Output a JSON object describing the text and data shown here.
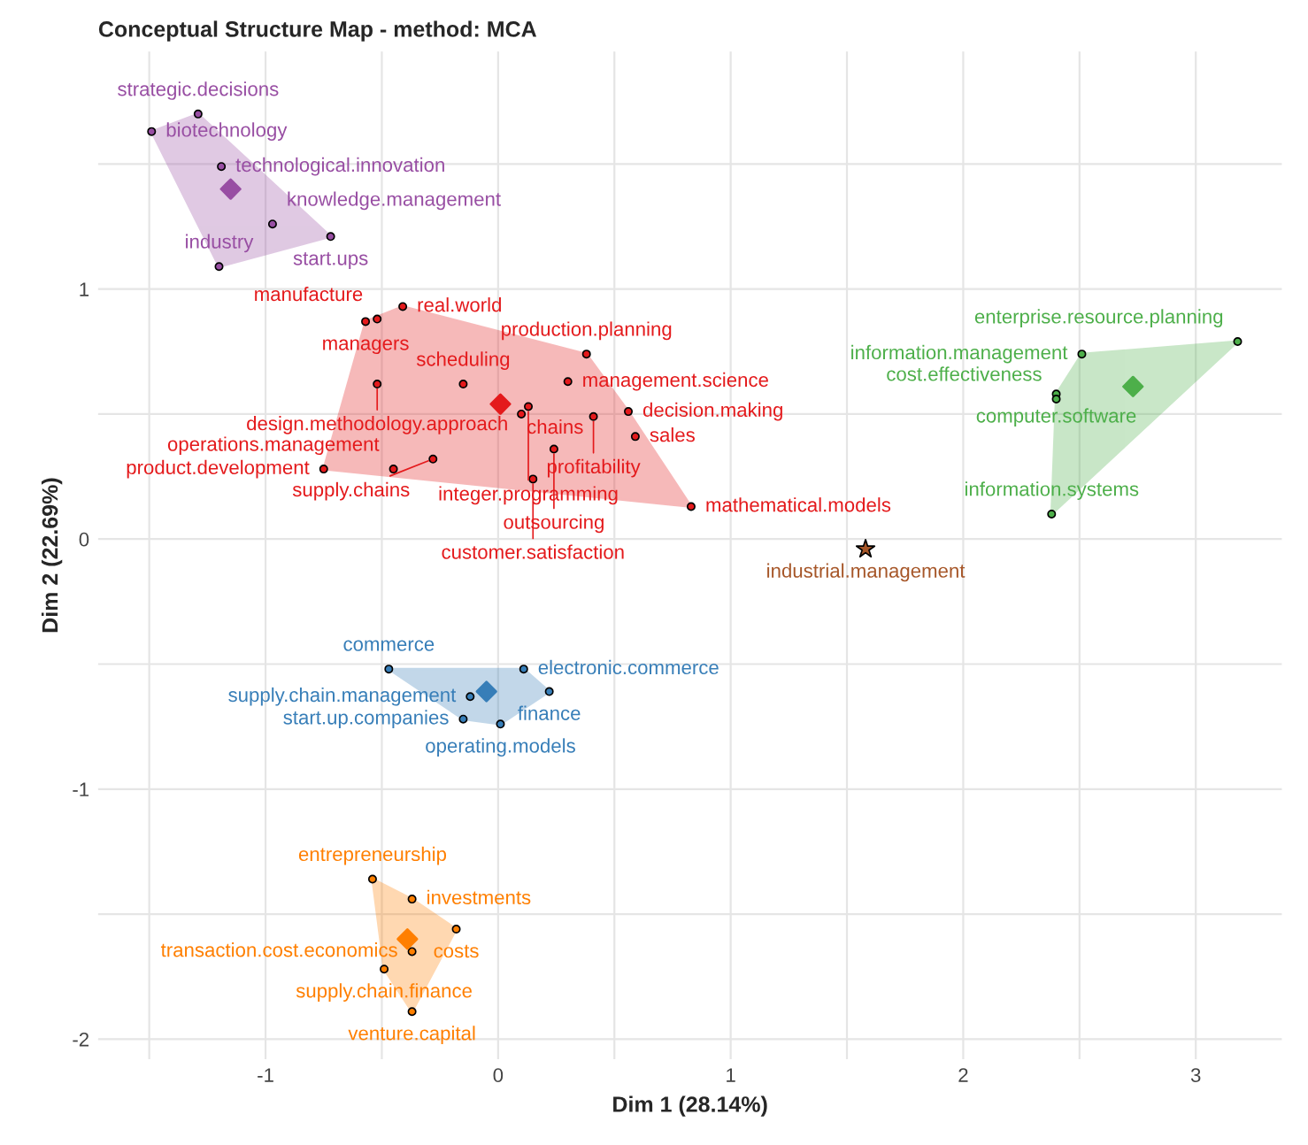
{
  "chart_data": {
    "type": "scatter",
    "title": "Conceptual Structure Map - method: MCA",
    "xlabel": "Dim 1 (28.14%)",
    "ylabel": "Dim 2 (22.69%)",
    "xlim": [
      -1.72,
      3.37
    ],
    "ylim": [
      -2.08,
      1.95
    ],
    "xticks": [
      {
        "value": -1.5,
        "label": null
      },
      -1,
      {
        "value": -0.5,
        "label": null
      },
      0,
      {
        "value": 0.5,
        "label": null
      },
      1,
      {
        "value": 1.5,
        "label": null
      },
      2,
      {
        "value": 2.5,
        "label": null
      },
      3
    ],
    "yticks": [
      {
        "value": -2,
        "label": "-2"
      },
      {
        "value": -1.5,
        "label": null
      },
      {
        "value": -1,
        "label": "-1"
      },
      {
        "value": -0.5,
        "label": null
      },
      0,
      {
        "value": 0.5,
        "label": null
      },
      1,
      {
        "value": 1.5,
        "label": null
      }
    ],
    "grid": true,
    "legend": false,
    "marker": "circle",
    "series": [
      {
        "type": "scatter",
        "color": "#984ea3",
        "x": [
          -1.29,
          -1.49,
          -1.19,
          -0.97,
          -0.72,
          -1.2
        ],
        "values": [
          1.7,
          1.63,
          1.49,
          1.26,
          1.21,
          1.09
        ]
      },
      {
        "type": "scatter",
        "color": "#e41a1c",
        "x": [
          -0.57,
          -0.52,
          -0.41,
          0.38,
          0.3,
          -0.52,
          -0.15,
          0.13,
          0.1,
          0.56,
          0.41,
          0.59,
          0.24,
          -0.28,
          -0.45,
          -0.75,
          0.15,
          0.83
        ],
        "values": [
          0.87,
          0.88,
          0.93,
          0.74,
          0.63,
          0.62,
          0.62,
          0.53,
          0.5,
          0.51,
          0.49,
          0.41,
          0.36,
          0.32,
          0.28,
          0.28,
          0.24,
          0.13
        ]
      },
      {
        "type": "scatter",
        "color": "#4daf4a",
        "x": [
          3.18,
          2.51,
          2.4,
          2.4,
          2.38
        ],
        "values": [
          0.79,
          0.74,
          0.58,
          0.56,
          0.1
        ]
      },
      {
        "type": "scatter",
        "color": "#a65628",
        "marker": "star",
        "x": [
          1.58
        ],
        "values": [
          -0.04
        ]
      },
      {
        "type": "scatter",
        "color": "#377eb8",
        "x": [
          -0.47,
          0.11,
          0.22,
          0.01,
          -0.15,
          -0.12
        ],
        "values": [
          -0.52,
          -0.52,
          -0.61,
          -0.74,
          -0.72,
          -0.63
        ]
      },
      {
        "type": "scatter",
        "color": "#ff7f00",
        "x": [
          -0.54,
          -0.37,
          -0.18,
          -0.37,
          -0.49,
          -0.37
        ],
        "values": [
          -1.36,
          -1.44,
          -1.56,
          -1.65,
          -1.72,
          -1.89
        ]
      },
      {
        "type": "scatter",
        "marker": "diamond",
        "colors": [
          "#984ea3",
          "#e41a1c",
          "#4daf4a",
          "#377eb8",
          "#ff7f00"
        ],
        "x": [
          -1.15,
          0.01,
          2.73,
          -0.05,
          -0.39
        ],
        "values": [
          1.4,
          0.54,
          0.61,
          -0.61,
          -1.6
        ]
      }
    ],
    "annotations": [
      {
        "text": "strategic.decisions",
        "x": -1.29,
        "y": 1.7
      },
      {
        "text": "biotechnology",
        "x": -1.49,
        "y": 1.63
      },
      {
        "text": "technological.innovation",
        "x": -1.19,
        "y": 1.49
      },
      {
        "text": "knowledge.management",
        "x": -0.97,
        "y": 1.26
      },
      {
        "text": "start.ups",
        "x": -0.72,
        "y": 1.21
      },
      {
        "text": "industry",
        "x": -1.2,
        "y": 1.09
      },
      {
        "text": "managers",
        "x": -0.57,
        "y": 0.87
      },
      {
        "text": "manufacture",
        "x": -0.52,
        "y": 0.88
      },
      {
        "text": "real.world",
        "x": -0.41,
        "y": 0.93
      },
      {
        "text": "production.planning",
        "x": 0.38,
        "y": 0.74
      },
      {
        "text": "management.science",
        "x": 0.3,
        "y": 0.63
      },
      {
        "text": "design.methodology.approach",
        "x": -0.52,
        "y": 0.62
      },
      {
        "text": "scheduling",
        "x": -0.15,
        "y": 0.62
      },
      {
        "text": "integer.programming",
        "x": 0.13,
        "y": 0.53
      },
      {
        "text": "chains",
        "x": 0.1,
        "y": 0.5
      },
      {
        "text": "decision.making",
        "x": 0.56,
        "y": 0.51
      },
      {
        "text": "profitability",
        "x": 0.41,
        "y": 0.49
      },
      {
        "text": "sales",
        "x": 0.59,
        "y": 0.41
      },
      {
        "text": "outsourcing",
        "x": 0.24,
        "y": 0.36
      },
      {
        "text": "supply.chains",
        "x": -0.28,
        "y": 0.32
      },
      {
        "text": "operations.management",
        "x": -0.45,
        "y": 0.28
      },
      {
        "text": "product.development",
        "x": -0.75,
        "y": 0.28
      },
      {
        "text": "customer.satisfaction",
        "x": 0.15,
        "y": 0.24
      },
      {
        "text": "mathematical.models",
        "x": 0.83,
        "y": 0.13
      },
      {
        "text": "enterprise.resource.planning",
        "x": 3.18,
        "y": 0.79
      },
      {
        "text": "information.management",
        "x": 2.51,
        "y": 0.74
      },
      {
        "text": "computer.software",
        "x": 2.4,
        "y": 0.58
      },
      {
        "text": "cost.effectiveness",
        "x": 2.4,
        "y": 0.56
      },
      {
        "text": "information.systems",
        "x": 2.38,
        "y": 0.1
      },
      {
        "text": "industrial.management",
        "x": 1.58,
        "y": -0.04
      },
      {
        "text": "commerce",
        "x": -0.47,
        "y": -0.52
      },
      {
        "text": "electronic.commerce",
        "x": 0.11,
        "y": -0.52
      },
      {
        "text": "finance",
        "x": 0.22,
        "y": -0.61
      },
      {
        "text": "operating.models",
        "x": 0.01,
        "y": -0.74
      },
      {
        "text": "start.up.companies",
        "x": -0.15,
        "y": -0.72
      },
      {
        "text": "supply.chain.management",
        "x": -0.12,
        "y": -0.63
      },
      {
        "text": "entrepreneurship",
        "x": -0.54,
        "y": -1.36
      },
      {
        "text": "investments",
        "x": -0.37,
        "y": -1.44
      },
      {
        "text": "costs",
        "x": -0.18,
        "y": -1.56
      },
      {
        "text": "transaction.cost.economics",
        "x": -0.37,
        "y": -1.65
      },
      {
        "text": "supply.chain.finance",
        "x": -0.49,
        "y": -1.72
      },
      {
        "text": "venture.capital",
        "x": -0.37,
        "y": -1.89
      }
    ]
  }
}
